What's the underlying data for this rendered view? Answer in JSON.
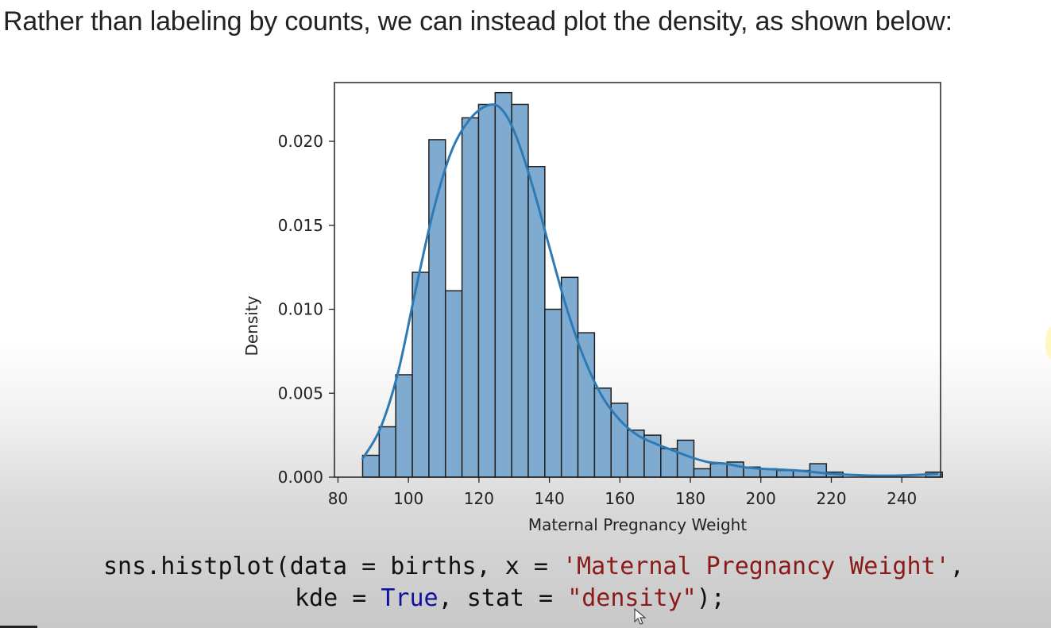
{
  "intro_text": "Rather than labeling by counts, we can instead plot the density, as shown below:",
  "code": {
    "l1_a": "sns.histplot(data = births, x = ",
    "l1_str": "'Maternal Pregnancy Weight'",
    "l1_b": ",",
    "l2_a": "kde = ",
    "l2_kw": "True",
    "l2_b": ", stat = ",
    "l2_str": "\"density\"",
    "l2_c": ");"
  },
  "colors": {
    "bar_fill": "#7fabd1",
    "bar_edge": "#1f1f1f",
    "kde_line": "#2e7ab5",
    "string": "#8b1a1a",
    "keyword": "#1010a0"
  },
  "chart_data": {
    "type": "bar",
    "title": "",
    "xlabel": "Maternal Pregnancy Weight",
    "ylabel": "Density",
    "xlim": [
      79,
      251
    ],
    "ylim": [
      0,
      0.0235
    ],
    "xticks": [
      80,
      100,
      120,
      140,
      160,
      180,
      200,
      220,
      240
    ],
    "yticks": [
      0.0,
      0.005,
      0.01,
      0.015,
      0.02
    ],
    "ytick_labels": [
      "0.000",
      "0.005",
      "0.010",
      "0.015",
      "0.020"
    ],
    "bin_start": 87,
    "bin_width": 4.7,
    "values": [
      0.0013,
      0.003,
      0.0061,
      0.0122,
      0.0201,
      0.0111,
      0.0214,
      0.0222,
      0.0229,
      0.0222,
      0.0185,
      0.01,
      0.0119,
      0.0086,
      0.0053,
      0.0044,
      0.0028,
      0.0025,
      0.0017,
      0.0022,
      0.0005,
      0.0008,
      0.0009,
      0.0006,
      0.0005,
      0.0004,
      0.0004,
      0.0008,
      0.0003,
      0.0,
      0.0,
      0.0,
      0.0,
      0.0,
      0.0003
    ],
    "kde": {
      "x": [
        87,
        92,
        97,
        102,
        107,
        112,
        117,
        122,
        126,
        130,
        135,
        140,
        145,
        150,
        155,
        160,
        165,
        170,
        175,
        180,
        185,
        190,
        195,
        200,
        210,
        220,
        230,
        240,
        250
      ],
      "y": [
        0.0011,
        0.0029,
        0.0062,
        0.0111,
        0.0158,
        0.0193,
        0.0212,
        0.0221,
        0.022,
        0.0206,
        0.0175,
        0.0137,
        0.01,
        0.007,
        0.0048,
        0.0034,
        0.0025,
        0.002,
        0.0016,
        0.0012,
        0.0009,
        0.0008,
        0.0006,
        0.0005,
        0.0004,
        0.0002,
        0.0001,
        0.0001,
        0.0002
      ]
    }
  }
}
